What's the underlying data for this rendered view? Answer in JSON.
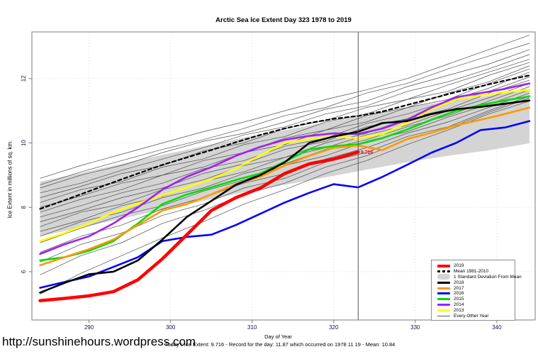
{
  "figure": {
    "url_watermark": "http://sunshinehours.wordpress.com"
  },
  "chart_data": {
    "type": "line",
    "title": "Arctic Sea Ice Extent Day 323 1978 to 2019",
    "xlabel": "Day of Year",
    "ylabel": "Ice Extent in millions of sq. km.",
    "caption": "Today's Ice Extent: 9.716  - Record for the day: 11.87 which occurred on 1978 11 19  - Mean: 10.84",
    "today": {
      "day": 323,
      "ice_extent": 9.716,
      "record_for_day": 11.87,
      "record_date": "1978 11 19",
      "mean": 10.84
    },
    "xlim": [
      283,
      344.7
    ],
    "ylim": [
      4.5,
      13.45
    ],
    "x_ticks": [
      290,
      300,
      310,
      320,
      330,
      340
    ],
    "y_ticks": [
      6,
      8,
      10,
      12
    ],
    "grid": true,
    "colors": {
      "grid": "#d6d6d6",
      "frame": "#7a7a7a",
      "background_lines": "#4d4d4d"
    },
    "marker_line": {
      "x": 323,
      "color": "#555555",
      "label": "9.716",
      "label_color": "#ff0000"
    },
    "band": {
      "name": "1 Standard Deviation From Mean",
      "color": "#d4d4d4",
      "x": [
        284,
        289,
        294,
        299,
        304,
        309,
        314,
        319,
        324,
        329,
        334,
        339,
        344
      ],
      "upper": [
        8.8,
        9.07,
        9.35,
        9.63,
        9.9,
        10.17,
        10.4,
        10.63,
        10.87,
        11.1,
        11.3,
        11.47,
        11.69
      ],
      "lower": [
        7.1,
        7.37,
        7.65,
        7.93,
        8.2,
        8.47,
        8.7,
        8.93,
        9.17,
        9.4,
        9.6,
        9.77,
        9.99
      ]
    },
    "series": [
      {
        "name": "Mean 1981-2010",
        "color": "#000000",
        "width": 2.2,
        "dash": "5 4",
        "x": [
          284,
          287,
          290,
          293,
          296,
          299,
          302,
          305,
          308,
          311,
          314,
          317,
          320,
          323,
          326,
          329,
          332,
          335,
          338,
          341,
          344
        ],
        "y": [
          7.95,
          8.22,
          8.5,
          8.78,
          9.05,
          9.32,
          9.55,
          9.78,
          10.02,
          10.25,
          10.45,
          10.62,
          10.75,
          10.84,
          10.98,
          11.18,
          11.38,
          11.58,
          11.76,
          11.94,
          12.1
        ]
      },
      {
        "name": "2013",
        "color": "#ffff00",
        "width": 2.6,
        "dash": "",
        "x": [
          284,
          287,
          290,
          293,
          296,
          299,
          302,
          305,
          308,
          311,
          314,
          317,
          320,
          323,
          326,
          329,
          332,
          335,
          338,
          341,
          344
        ],
        "y": [
          6.95,
          7.2,
          7.5,
          7.85,
          8.12,
          8.38,
          8.62,
          8.88,
          9.2,
          9.62,
          10.0,
          10.12,
          10.2,
          10.15,
          10.28,
          10.62,
          11.05,
          11.35,
          11.48,
          11.58,
          11.65
        ]
      },
      {
        "name": "2014",
        "color": "#a020f0",
        "width": 2.6,
        "dash": "",
        "x": [
          284,
          287,
          290,
          293,
          296,
          299,
          302,
          305,
          308,
          311,
          314,
          317,
          320,
          323,
          326,
          329,
          332,
          335,
          338,
          341,
          344
        ],
        "y": [
          6.55,
          6.85,
          7.1,
          7.5,
          8.0,
          8.55,
          8.95,
          9.25,
          9.6,
          9.88,
          10.1,
          10.22,
          10.3,
          10.28,
          10.45,
          10.72,
          11.1,
          11.42,
          11.55,
          11.68,
          11.85
        ]
      },
      {
        "name": "2015",
        "color": "#00dd00",
        "width": 2.6,
        "dash": "",
        "x": [
          284,
          287,
          290,
          293,
          296,
          299,
          302,
          305,
          308,
          311,
          314,
          317,
          320,
          323,
          326,
          329,
          332,
          335,
          338,
          341,
          344
        ],
        "y": [
          6.35,
          6.45,
          6.65,
          6.95,
          7.5,
          8.1,
          8.4,
          8.62,
          8.85,
          9.05,
          9.42,
          9.8,
          9.9,
          9.96,
          10.15,
          10.42,
          10.72,
          11.0,
          11.18,
          11.32,
          11.45
        ]
      },
      {
        "name": "2016",
        "color": "#0000ff",
        "width": 2.6,
        "dash": "",
        "x": [
          284,
          287,
          290,
          293,
          296,
          299,
          302,
          305,
          308,
          311,
          314,
          317,
          320,
          323,
          326,
          329,
          332,
          335,
          338,
          341,
          344
        ],
        "y": [
          5.5,
          5.68,
          5.85,
          6.15,
          6.45,
          6.95,
          7.08,
          7.15,
          7.45,
          7.8,
          8.15,
          8.45,
          8.72,
          8.62,
          8.95,
          9.32,
          9.7,
          10.0,
          10.4,
          10.48,
          10.68
        ]
      },
      {
        "name": "2017",
        "color": "#ff9900",
        "width": 2.6,
        "dash": "",
        "x": [
          284,
          287,
          290,
          293,
          296,
          299,
          302,
          305,
          308,
          311,
          314,
          317,
          320,
          323,
          326,
          329,
          332,
          335,
          338,
          341,
          344
        ],
        "y": [
          6.2,
          6.45,
          6.7,
          7.0,
          7.45,
          7.9,
          8.1,
          8.4,
          8.72,
          8.95,
          9.3,
          9.6,
          9.85,
          9.92,
          9.78,
          10.12,
          10.32,
          10.55,
          10.72,
          10.9,
          11.1
        ]
      },
      {
        "name": "2018",
        "color": "#000000",
        "width": 2.6,
        "dash": "",
        "x": [
          284,
          287,
          290,
          293,
          296,
          299,
          302,
          305,
          308,
          311,
          314,
          317,
          320,
          323,
          326,
          329,
          332,
          335,
          338,
          341,
          344
        ],
        "y": [
          5.35,
          5.65,
          5.92,
          6.0,
          6.35,
          7.0,
          7.7,
          8.2,
          8.7,
          9.0,
          9.4,
          10.0,
          10.2,
          10.35,
          10.62,
          10.68,
          10.9,
          11.05,
          11.12,
          11.22,
          11.32
        ]
      },
      {
        "name": "2019",
        "color": "#ff0000",
        "width": 4.5,
        "dash": "",
        "x": [
          284,
          287,
          290,
          293,
          296,
          299,
          302,
          305,
          308,
          311,
          314,
          317,
          320,
          323
        ],
        "y": [
          5.1,
          5.17,
          5.25,
          5.38,
          5.75,
          6.4,
          7.15,
          7.9,
          8.3,
          8.6,
          9.05,
          9.35,
          9.5,
          9.716
        ]
      }
    ],
    "background_series": {
      "name": "Every Other Year",
      "color": "#4d4d4d",
      "width": 0.7,
      "x": [
        284,
        289,
        294,
        299,
        304,
        309,
        314,
        319,
        324,
        329,
        334,
        339,
        344
      ],
      "lines": [
        [
          8.9,
          9.3,
          9.65,
          10.0,
          10.35,
          10.65,
          11.0,
          11.35,
          11.65,
          12.0,
          12.45,
          12.9,
          13.35
        ],
        [
          8.7,
          9.1,
          9.45,
          9.8,
          10.1,
          10.45,
          10.85,
          11.1,
          11.55,
          11.85,
          12.3,
          12.7,
          13.1
        ],
        [
          8.6,
          9.0,
          9.3,
          9.7,
          10.05,
          10.3,
          10.65,
          11.05,
          11.3,
          11.75,
          12.1,
          12.45,
          12.9
        ],
        [
          8.45,
          8.75,
          9.15,
          9.5,
          9.85,
          10.25,
          10.5,
          10.9,
          11.15,
          11.6,
          11.9,
          12.3,
          12.75
        ],
        [
          8.3,
          8.65,
          9.05,
          9.3,
          9.75,
          10.0,
          10.45,
          10.7,
          11.1,
          11.35,
          11.8,
          12.2,
          12.6
        ],
        [
          8.15,
          8.55,
          8.8,
          9.25,
          9.5,
          9.95,
          10.2,
          10.65,
          10.9,
          11.35,
          11.6,
          12.1,
          12.5
        ],
        [
          8.0,
          8.35,
          8.75,
          9.0,
          9.45,
          9.7,
          10.15,
          10.4,
          10.85,
          11.1,
          11.55,
          11.9,
          12.4
        ],
        [
          7.85,
          8.25,
          8.55,
          9.0,
          9.25,
          9.7,
          9.95,
          10.4,
          10.65,
          11.1,
          11.35,
          11.85,
          12.3
        ],
        [
          7.7,
          8.05,
          8.45,
          8.75,
          9.2,
          9.45,
          9.9,
          10.15,
          10.6,
          10.9,
          11.3,
          11.7,
          12.2
        ],
        [
          7.55,
          7.9,
          8.3,
          8.6,
          9.05,
          9.35,
          9.8,
          10.05,
          10.5,
          10.75,
          11.25,
          11.6,
          12.05
        ],
        [
          7.4,
          7.85,
          8.1,
          8.55,
          8.85,
          9.3,
          9.55,
          10.0,
          10.3,
          10.75,
          11.05,
          11.55,
          11.95
        ],
        [
          7.25,
          7.6,
          8.05,
          8.35,
          8.8,
          9.1,
          9.55,
          9.85,
          10.25,
          10.55,
          11.0,
          11.4,
          11.85
        ],
        [
          7.1,
          7.55,
          7.85,
          8.3,
          8.6,
          9.05,
          9.35,
          9.8,
          10.1,
          10.5,
          10.85,
          11.3,
          11.75
        ],
        [
          6.9,
          7.35,
          7.75,
          8.05,
          8.5,
          8.85,
          9.3,
          9.6,
          10.05,
          10.35,
          10.8,
          11.2,
          11.65
        ],
        [
          6.6,
          7.1,
          7.45,
          7.95,
          8.3,
          8.75,
          9.05,
          9.5,
          9.85,
          10.3,
          10.65,
          11.1,
          11.55
        ],
        [
          6.3,
          6.85,
          7.2,
          7.75,
          8.1,
          8.6,
          8.9,
          9.4,
          9.7,
          10.2,
          10.5,
          11.0,
          11.45
        ],
        [
          5.9,
          6.5,
          6.9,
          7.5,
          7.9,
          8.4,
          8.75,
          9.25,
          9.6,
          10.1,
          10.45,
          10.95,
          11.4
        ],
        [
          5.3,
          5.95,
          6.5,
          7.05,
          7.55,
          8.1,
          8.55,
          9.05,
          9.45,
          9.95,
          10.4,
          10.9,
          11.3
        ]
      ]
    },
    "legend": {
      "position": "bottom-right",
      "entries": [
        {
          "label": "2019",
          "style": "solid",
          "color": "#ff0000",
          "thick": true
        },
        {
          "label": "Mean 1981-2010",
          "style": "dashed",
          "color": "#000000"
        },
        {
          "label": "1 Standard Deviation From Mean",
          "style": "band",
          "color": "#d4d4d4"
        },
        {
          "label": "2018",
          "style": "solid",
          "color": "#000000"
        },
        {
          "label": "2017",
          "style": "solid",
          "color": "#ff9900"
        },
        {
          "label": "2016",
          "style": "solid",
          "color": "#0000ff"
        },
        {
          "label": "2015",
          "style": "solid",
          "color": "#00dd00"
        },
        {
          "label": "2014",
          "style": "solid",
          "color": "#a020f0"
        },
        {
          "label": "2013",
          "style": "solid",
          "color": "#ffff00"
        },
        {
          "label": "Every Other Year",
          "style": "thin",
          "color": "#555555"
        }
      ]
    }
  }
}
